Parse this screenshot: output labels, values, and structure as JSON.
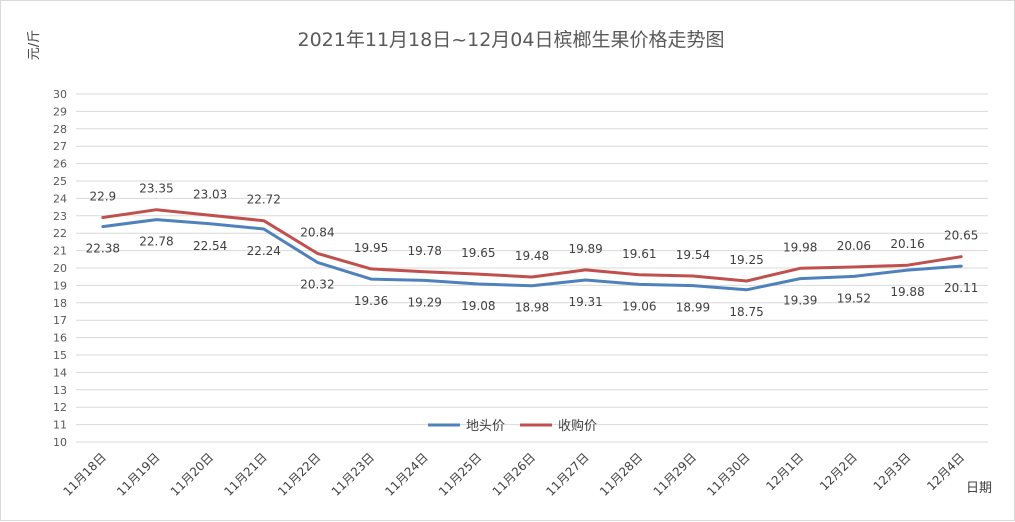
{
  "chart_data": {
    "type": "line",
    "title": "2021年11月18日~12月04日槟榔生果价格走势图",
    "ylabel": "元/斤",
    "xlabel": "日期",
    "ylim": [
      10,
      30
    ],
    "ytick_step": 1,
    "grid": true,
    "legend_position": "bottom-center",
    "categories": [
      "11月18日",
      "11月19日",
      "11月20日",
      "11月21日",
      "11月22日",
      "11月23日",
      "11月24日",
      "11月25日",
      "11月26日",
      "11月27日",
      "11月28日",
      "11月29日",
      "11月30日",
      "12月1日",
      "12月2日",
      "12月3日",
      "12月4日"
    ],
    "series": [
      {
        "name": "地头价",
        "color": "#4f81bd",
        "label_position": "below",
        "values": [
          22.38,
          22.78,
          22.54,
          22.24,
          20.32,
          19.36,
          19.29,
          19.08,
          18.98,
          19.31,
          19.06,
          18.99,
          18.75,
          19.39,
          19.52,
          19.88,
          20.11
        ]
      },
      {
        "name": "收购价",
        "color": "#c0504d",
        "label_position": "above",
        "values": [
          22.9,
          23.35,
          23.03,
          22.72,
          20.84,
          19.95,
          19.78,
          19.65,
          19.48,
          19.89,
          19.61,
          19.54,
          19.25,
          19.98,
          20.06,
          20.16,
          20.65
        ]
      }
    ]
  }
}
